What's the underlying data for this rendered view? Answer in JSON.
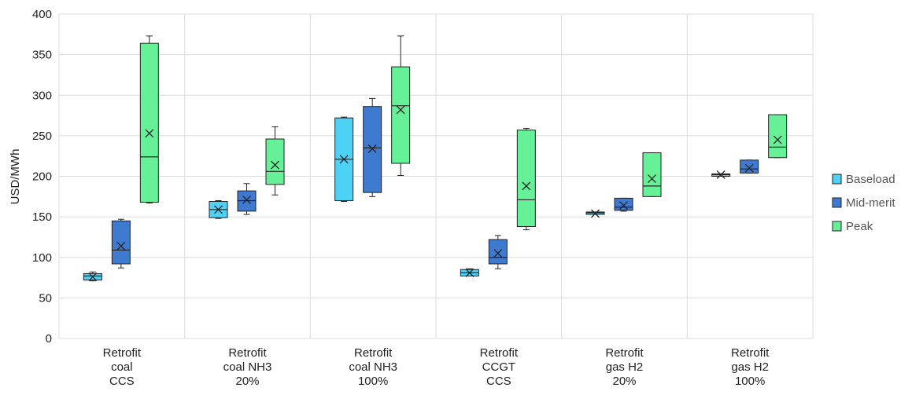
{
  "chart_data": {
    "type": "box",
    "ylabel": "USD/MWh",
    "ylim": [
      0,
      400
    ],
    "yticks": [
      0,
      50,
      100,
      150,
      200,
      250,
      300,
      350,
      400
    ],
    "grid": true,
    "legend_position": "right",
    "categories": [
      [
        "Retrofit",
        "coal",
        "CCS"
      ],
      [
        "Retrofit",
        "coal NH3",
        "20%"
      ],
      [
        "Retrofit",
        "coal NH3",
        "100%"
      ],
      [
        "Retrofit",
        "CCGT",
        "CCS"
      ],
      [
        "Retrofit",
        "gas H2",
        "20%"
      ],
      [
        "Retrofit",
        "gas H2",
        "100%"
      ]
    ],
    "series": [
      {
        "name": "Baseload",
        "color": "#4dd2f5",
        "boxes": [
          {
            "min": 71,
            "q1": 72,
            "median": 77,
            "q3": 80,
            "max": 82,
            "mean": 76
          },
          {
            "min": 148,
            "q1": 149,
            "median": 159,
            "q3": 169,
            "max": 170,
            "mean": 159
          },
          {
            "min": 169,
            "q1": 170,
            "median": 221,
            "q3": 272,
            "max": 273,
            "mean": 221
          },
          {
            "min": 77,
            "q1": 77,
            "median": 81,
            "q3": 85,
            "max": 86,
            "mean": 81
          },
          {
            "min": 153,
            "q1": 153,
            "median": 155,
            "q3": 156,
            "max": 156,
            "mean": 154
          },
          {
            "min": 200,
            "q1": 200,
            "median": 202,
            "q3": 203,
            "max": 203,
            "mean": 202
          }
        ]
      },
      {
        "name": "Mid-merit",
        "color": "#3f7ad1",
        "boxes": [
          {
            "min": 87,
            "q1": 92,
            "median": 109,
            "q3": 145,
            "max": 147,
            "mean": 114
          },
          {
            "min": 153,
            "q1": 157,
            "median": 170,
            "q3": 182,
            "max": 191,
            "mean": 171
          },
          {
            "min": 175,
            "q1": 180,
            "median": 235,
            "q3": 286,
            "max": 296,
            "mean": 234
          },
          {
            "min": 86,
            "q1": 92,
            "median": 100,
            "q3": 122,
            "max": 127,
            "mean": 105
          },
          {
            "min": 157,
            "q1": 158,
            "median": 162,
            "q3": 173,
            "max": 173,
            "mean": 164
          },
          {
            "min": 204,
            "q1": 204,
            "median": 209,
            "q3": 220,
            "max": 220,
            "mean": 210
          }
        ]
      },
      {
        "name": "Peak",
        "color": "#66f098",
        "boxes": [
          {
            "min": 167,
            "q1": 168,
            "median": 224,
            "q3": 364,
            "max": 373,
            "mean": 253
          },
          {
            "min": 177,
            "q1": 190,
            "median": 206,
            "q3": 246,
            "max": 261,
            "mean": 214
          },
          {
            "min": 201,
            "q1": 216,
            "median": 287,
            "q3": 335,
            "max": 373,
            "mean": 282
          },
          {
            "min": 134,
            "q1": 138,
            "median": 171,
            "q3": 257,
            "max": 259,
            "mean": 188
          },
          {
            "min": 175,
            "q1": 175,
            "median": 188,
            "q3": 229,
            "max": 229,
            "mean": 197
          },
          {
            "min": 223,
            "q1": 223,
            "median": 236,
            "q3": 276,
            "max": 276,
            "mean": 245
          }
        ]
      }
    ]
  }
}
